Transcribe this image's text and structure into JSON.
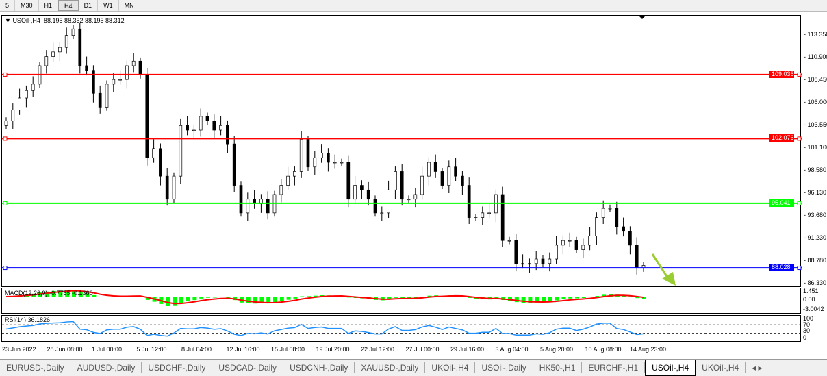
{
  "timeframes": [
    "5",
    "M30",
    "H1",
    "H4",
    "D1",
    "W1",
    "MN"
  ],
  "active_timeframe": "H4",
  "chart": {
    "symbol": "USOil-,H4",
    "ohlc": "88.195 88.352 88.195 88.312"
  },
  "price_axis": [
    "113.350",
    "110.900",
    "108.450",
    "106.000",
    "103.550",
    "101.100",
    "98.580",
    "96.130",
    "93.680",
    "91.230",
    "88.780",
    "86.330"
  ],
  "lines": [
    {
      "price": 109.036,
      "label": "109.036",
      "color": "#ff0000"
    },
    {
      "price": 102.076,
      "label": "102.076",
      "color": "#ff0000"
    },
    {
      "price": 95.041,
      "label": "95.041",
      "color": "#00ff00"
    },
    {
      "price": 88.028,
      "label": "88.028",
      "color": "#0000ff"
    }
  ],
  "macd": {
    "label": "MACD(12,26,9) -0.7755 -0.1360",
    "axis": [
      "1.451",
      "0.00",
      "-3.0042"
    ],
    "hist_color": "#00ff00",
    "signal_color": "#ff0000"
  },
  "rsi": {
    "label": "RSI(14) 36.1826",
    "axis": [
      "100",
      "70",
      "30",
      "0"
    ],
    "color": "#1e90ff"
  },
  "x_labels": [
    "23 Jun 2022",
    "28 Jun 08:00",
    "1 Jul 00:00",
    "5 Jul 12:00",
    "8 Jul 04:00",
    "12 Jul 16:00",
    "15 Jul 08:00",
    "19 Jul 20:00",
    "22 Jul 12:00",
    "27 Jul 00:00",
    "29 Jul 16:00",
    "3 Aug 04:00",
    "5 Aug 20:00",
    "10 Aug 08:00",
    "14 Aug 23:00"
  ],
  "tabs": [
    "EURUSD-,Daily",
    "AUDUSD-,Daily",
    "USDCHF-,Daily",
    "USDCAD-,Daily",
    "USDCNH-,Daily",
    "XAUUSD-,Daily",
    "UKOil-,H4",
    "USOil-,Daily",
    "HK50-,H1",
    "EURCHF-,H1",
    "USOil-,H4",
    "UKOil-,H4"
  ],
  "active_tab": "USOil-,H4",
  "chart_data": {
    "type": "candlestick",
    "closes": [
      104,
      105.2,
      106.5,
      107.3,
      108,
      110,
      111,
      111.5,
      112,
      113.3,
      114,
      110,
      109.5,
      107,
      105.5,
      108,
      108.5,
      108.5,
      110,
      110.5,
      109,
      100,
      101,
      98,
      95.5,
      98,
      103.5,
      103,
      103,
      104.5,
      104,
      103,
      103.5,
      101.5,
      97,
      94,
      95.5,
      95,
      95.5,
      94,
      96,
      97,
      98,
      98.5,
      102,
      99,
      100,
      100.5,
      99.5,
      99.5,
      99.5,
      95.5,
      97,
      96.5,
      95.5,
      94,
      94,
      96.5,
      98.5,
      95.5,
      95.5,
      96,
      98,
      99.5,
      98.5,
      97,
      99,
      98,
      97,
      93.5,
      93.5,
      94,
      94,
      96,
      91,
      91,
      88.5,
      88.5,
      88.5,
      89,
      88.5,
      89,
      90.5,
      91,
      91,
      90,
      90.5,
      91.5,
      93.5,
      94.5,
      94.5,
      92.5,
      92,
      90.5,
      88,
      88.3
    ],
    "ylim": [
      86.33,
      113.35
    ]
  }
}
